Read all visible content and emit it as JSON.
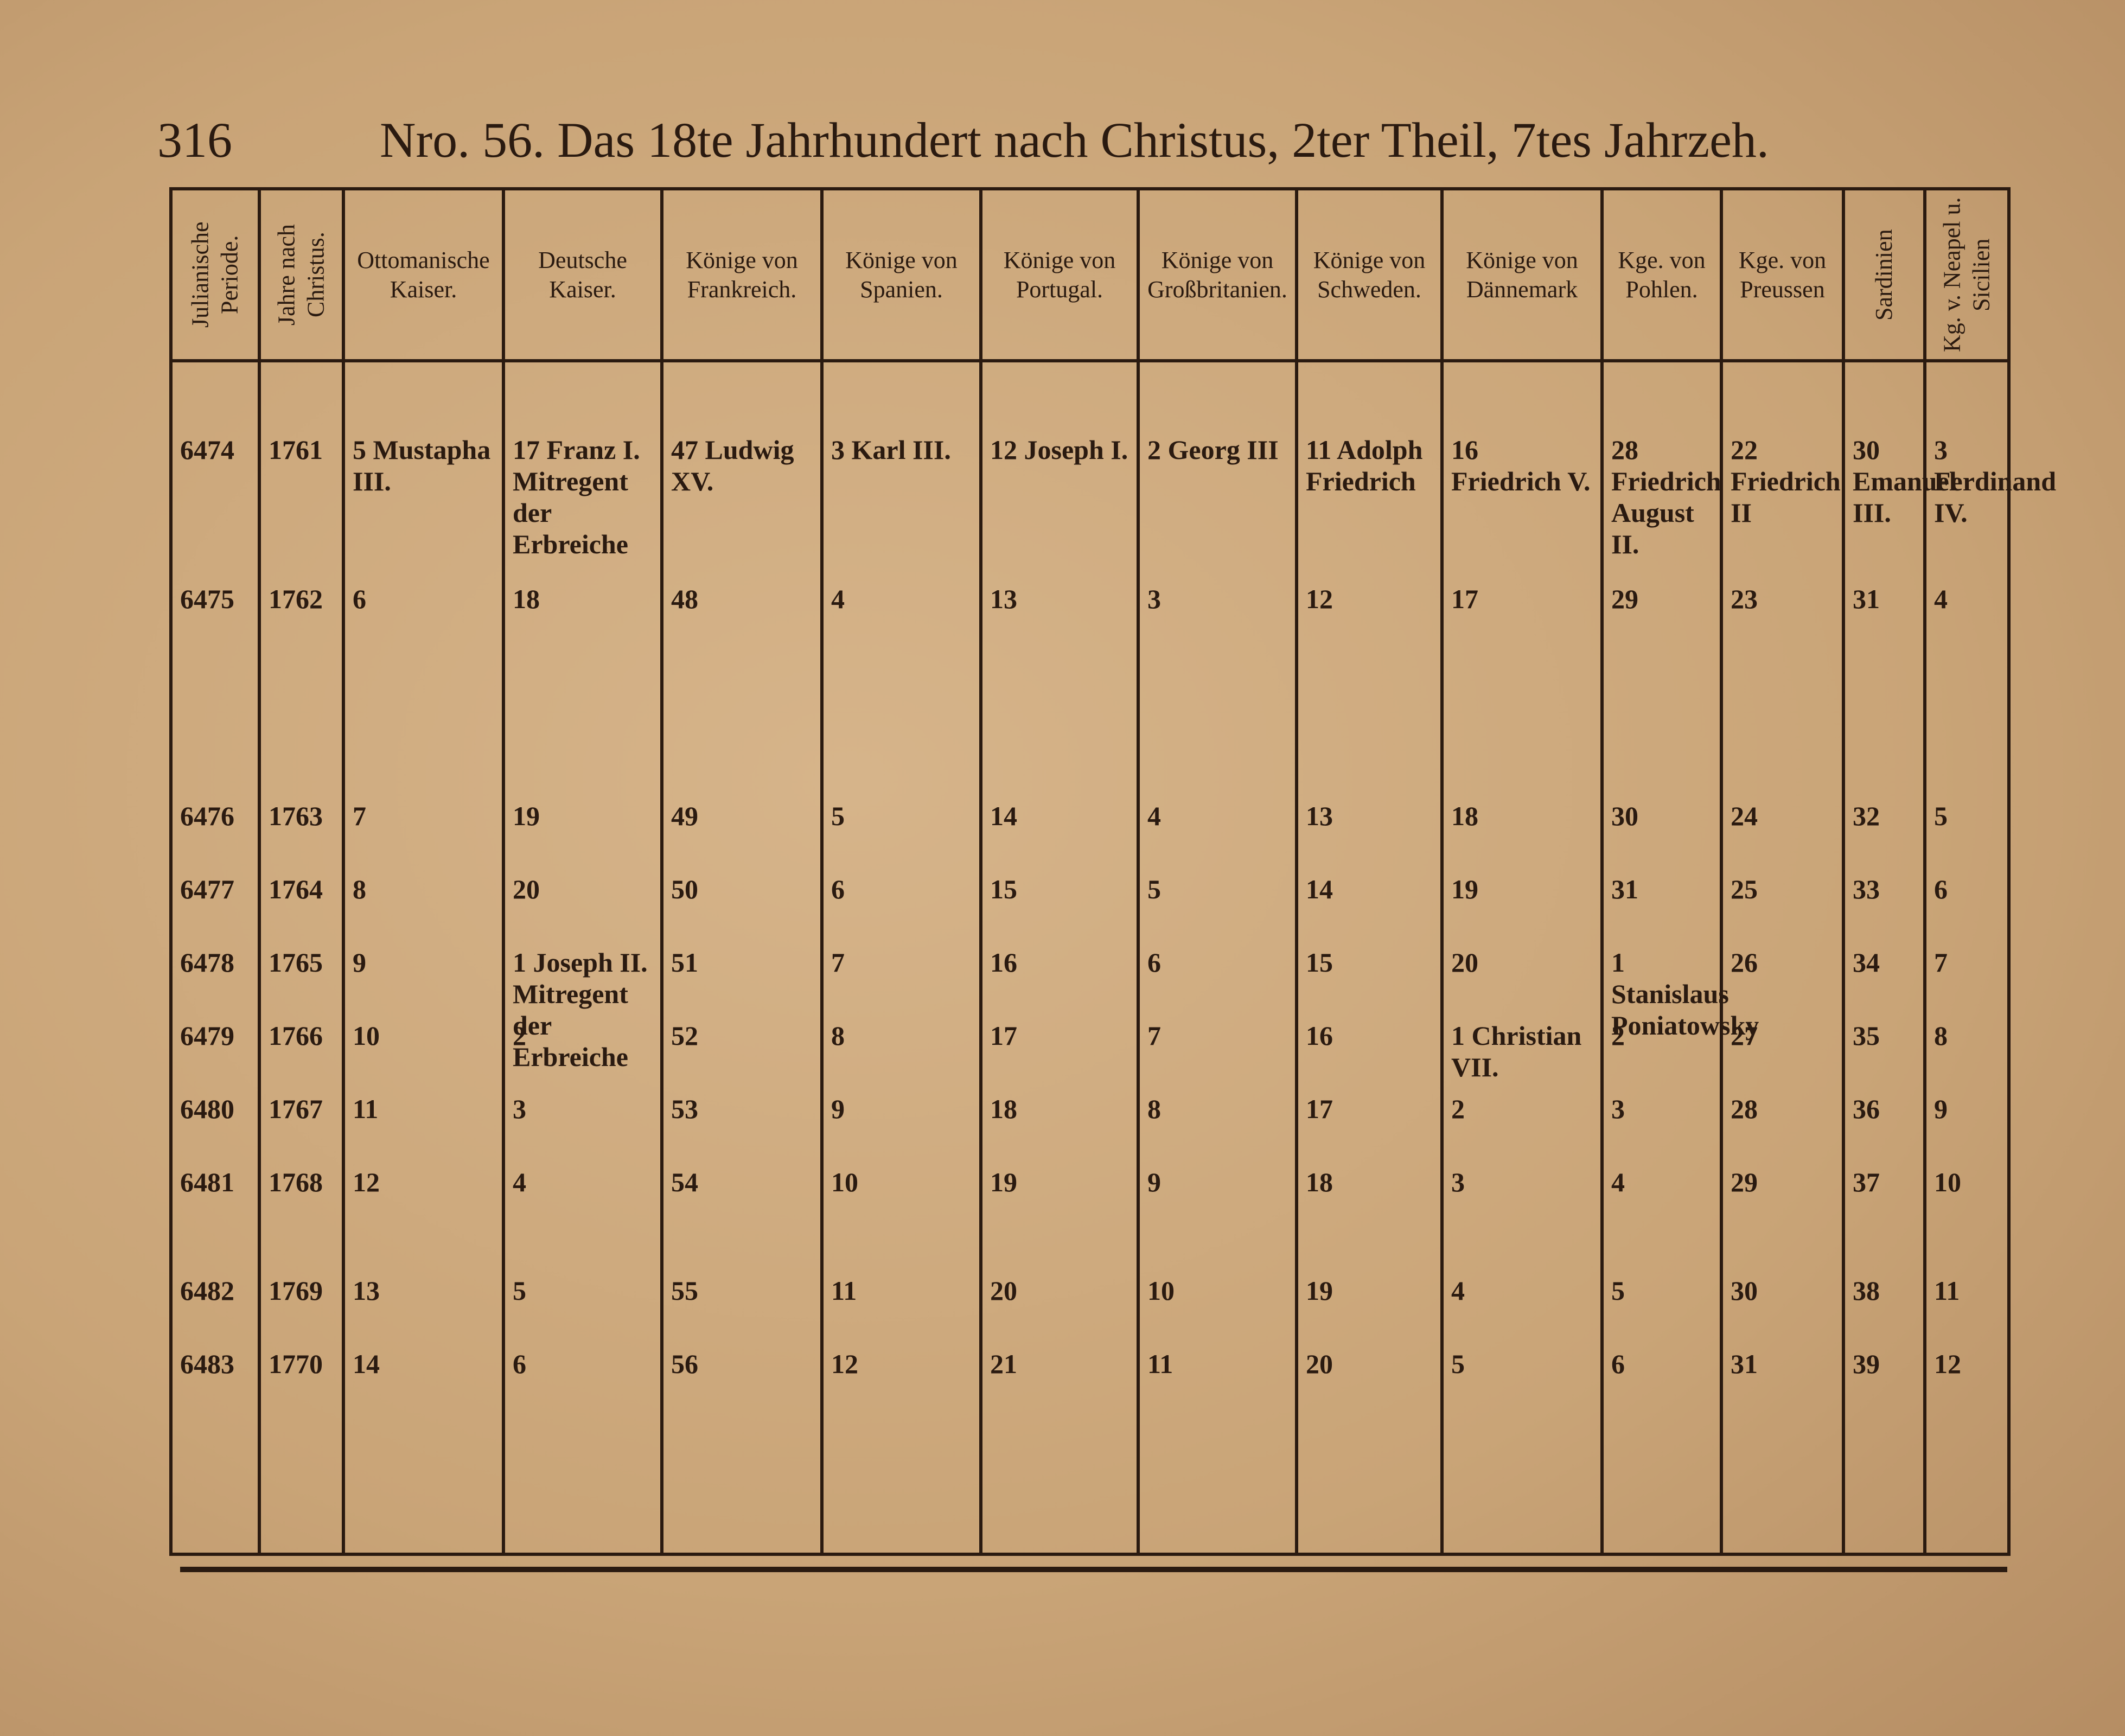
{
  "header": {
    "page_number": "316",
    "title": "Nro. 56. Das 18te Jahrhundert nach Christus, 2ter Theil, 7tes Jahrzeh."
  },
  "table": {
    "columns": [
      "Julianische Periode.",
      "Jahre nach Christus.",
      "Ottomanische Kaiser.",
      "Deutsche Kaiser.",
      "Könige von Frankreich.",
      "Könige von Spanien.",
      "Könige von Portugal.",
      "Könige von Großbritanien.",
      "Könige von Schweden.",
      "Könige von Dännemark",
      "Kge. von Pohlen.",
      "Kge. von Preussen",
      "Sardinien",
      "Kg. v. Neapel u. Sicilien"
    ],
    "rows": [
      [
        "6474",
        "1761",
        "5 Mustapha III.",
        "17 Franz I. Mitregent der Erbreiche",
        "47 Ludwig XV.",
        "3 Karl III.",
        "12 Joseph I.",
        "2 Georg III",
        "11 Adolph Friedrich",
        "16 Friedrich V.",
        "28 Friedrich August II.",
        "22 Friedrich II",
        "30 Emanuel III.",
        "3 Ferdinand IV."
      ],
      [
        "6475",
        "1762",
        "6",
        "18",
        "48",
        "4",
        "13",
        "3",
        "12",
        "17",
        "29",
        "23",
        "31",
        "4"
      ],
      [
        "6476",
        "1763",
        "7",
        "19",
        "49",
        "5",
        "14",
        "4",
        "13",
        "18",
        "30",
        "24",
        "32",
        "5"
      ],
      [
        "6477",
        "1764",
        "8",
        "20",
        "50",
        "6",
        "15",
        "5",
        "14",
        "19",
        "31",
        "25",
        "33",
        "6"
      ],
      [
        "6478",
        "1765",
        "9",
        "1 Joseph II. Mitregent der Erbreiche",
        "51",
        "7",
        "16",
        "6",
        "15",
        "20",
        "1 Stanislaus Poniatowsky",
        "26",
        "34",
        "7"
      ],
      [
        "6479",
        "1766",
        "10",
        "2",
        "52",
        "8",
        "17",
        "7",
        "16",
        "1 Christian VII.",
        "2",
        "27",
        "35",
        "8"
      ],
      [
        "6480",
        "1767",
        "11",
        "3",
        "53",
        "9",
        "18",
        "8",
        "17",
        "2",
        "3",
        "28",
        "36",
        "9"
      ],
      [
        "6481",
        "1768",
        "12",
        "4",
        "54",
        "10",
        "19",
        "9",
        "18",
        "3",
        "4",
        "29",
        "37",
        "10"
      ],
      [
        "6482",
        "1769",
        "13",
        "5",
        "55",
        "11",
        "20",
        "10",
        "19",
        "4",
        "5",
        "30",
        "38",
        "11"
      ],
      [
        "6483",
        "1770",
        "14",
        "6",
        "56",
        "12",
        "21",
        "11",
        "20",
        "5",
        "6",
        "31",
        "39",
        "12"
      ]
    ]
  }
}
